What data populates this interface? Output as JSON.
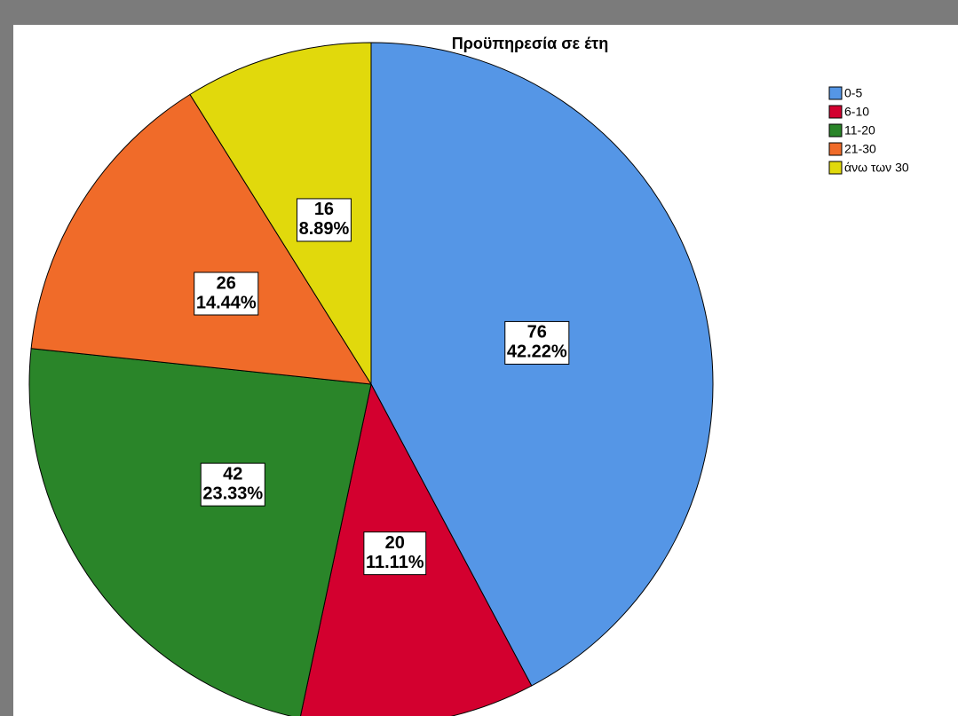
{
  "chart_data": {
    "type": "pie",
    "title": "Προϋπηρεσία σε έτη",
    "categories": [
      "0-5",
      "6-10",
      "11-20",
      "21-30",
      "άνω των 30"
    ],
    "values": [
      76,
      20,
      42,
      26,
      16
    ],
    "percent_labels": [
      "42.22%",
      "11.11%",
      "23.33%",
      "14.44%",
      "8.89%"
    ],
    "colors": [
      "#5596e6",
      "#d3002f",
      "#2a8529",
      "#f06b29",
      "#e1d90c"
    ],
    "legend": "top-right"
  }
}
